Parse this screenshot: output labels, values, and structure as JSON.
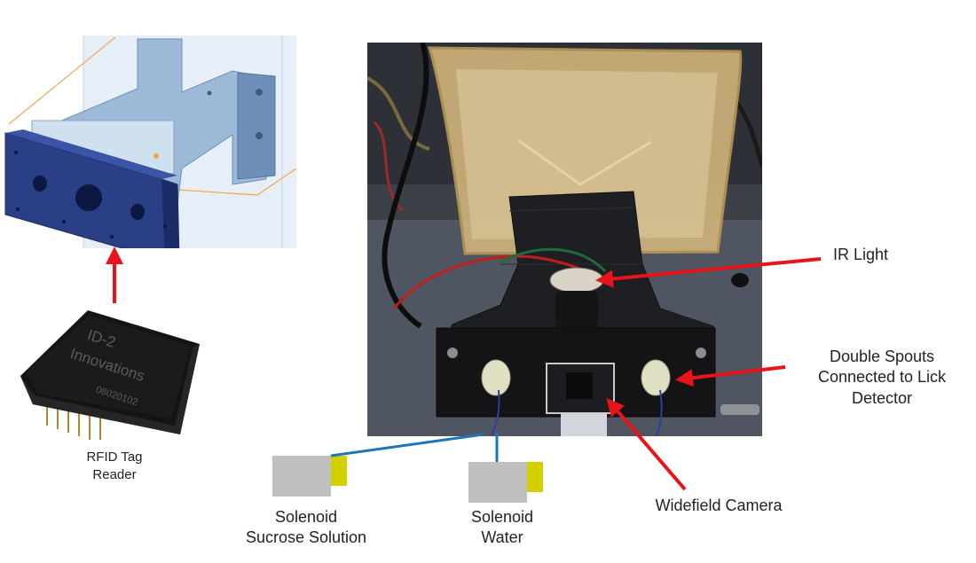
{
  "figure": {
    "labels": {
      "rfid": [
        "RFID Tag",
        "Reader"
      ],
      "ir_light": "IR Light",
      "double_spouts": [
        "Double Spouts",
        "Connected to Lick",
        "Detector"
      ],
      "widefield_camera": "Widefield Camera",
      "solenoid_sucrose": [
        "Solenoid",
        "Sucrose Solution"
      ],
      "solenoid_water": [
        "Solenoid",
        "Water"
      ]
    },
    "chip_markings": [
      "ID-2",
      "Innovations",
      "08020102"
    ],
    "colors": {
      "arrow": "#e8141b",
      "tube": "#1b75bb",
      "solenoid_body": "#bfbfbf",
      "solenoid_cap": "#d4d000",
      "cad_blue": "#2a3f86"
    }
  }
}
